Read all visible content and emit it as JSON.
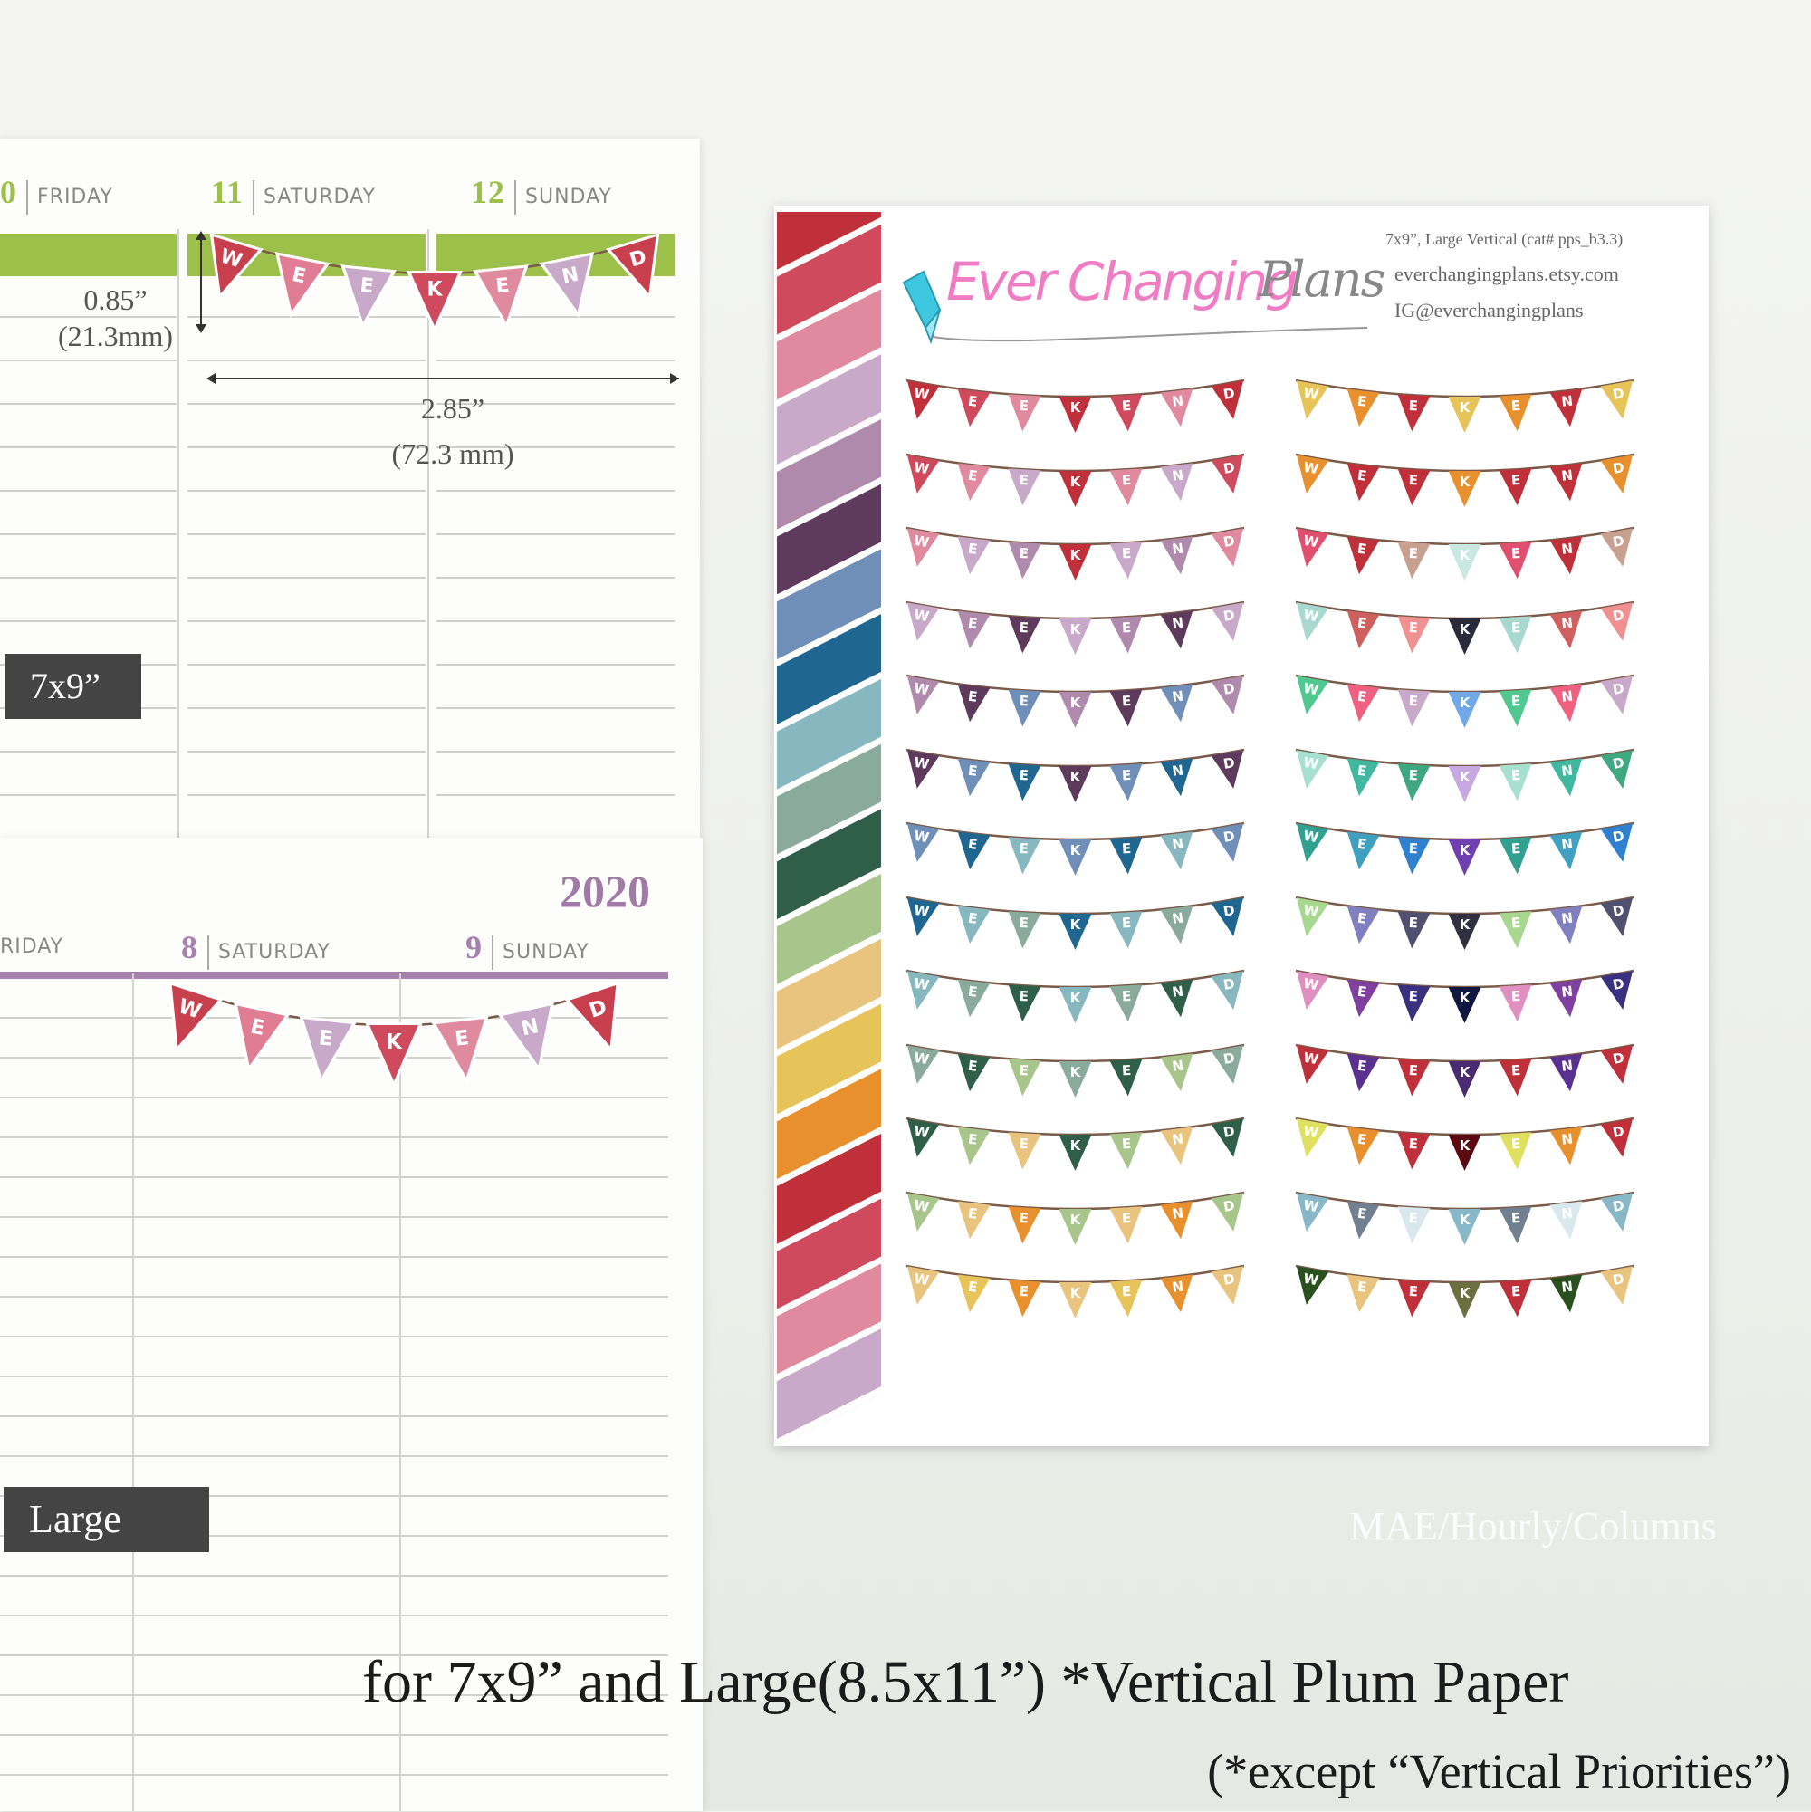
{
  "planner_7x9": {
    "days": [
      {
        "num": "0",
        "name": "FRIDAY"
      },
      {
        "num": "11",
        "name": "SATURDAY"
      },
      {
        "num": "12",
        "name": "SUNDAY"
      }
    ],
    "accent": "#9cc04a",
    "height_in": "0.85”",
    "height_mm": "(21.3mm)",
    "width_in": "2.85”",
    "width_mm": "(72.3 mm)",
    "label": "7x9”"
  },
  "planner_large": {
    "year": "2020",
    "days": [
      {
        "num": "",
        "name": "RIDAY"
      },
      {
        "num": "8",
        "name": "SATURDAY"
      },
      {
        "num": "9",
        "name": "SUNDAY"
      }
    ],
    "accent": "#a880b0",
    "label": "Large"
  },
  "sheet": {
    "logo": {
      "text1": "Ever Changing",
      "text2": "Plans"
    },
    "info": [
      "7x9”, Large Vertical (cat# pps_b3.3)",
      "everchangingplans.etsy.com",
      "IG@everchangingplans"
    ],
    "letters": [
      "W",
      "E",
      "E",
      "K",
      "E",
      "N",
      "D"
    ],
    "stripes": [
      "#c0303a",
      "#d04a5e",
      "#e08aa0",
      "#c9a9c9",
      "#b08aac",
      "#5e3a5c",
      "#6f8fb8",
      "#1f6690",
      "#88b8bf",
      "#8aab9c",
      "#2f5f48",
      "#a8c68c",
      "#e8c47e",
      "#e6c45a",
      "#e8902e",
      "#c0303a",
      "#d04a5e",
      "#e08aa0",
      "#c9a9c9"
    ],
    "left_rows": [
      [
        "#c0303a",
        "#d04a5e",
        "#e08aa0",
        "#c0303a",
        "#d04a5e",
        "#e08aa0",
        "#c0303a"
      ],
      [
        "#d04a5e",
        "#e08aa0",
        "#c9a9c9",
        "#c0303a",
        "#e08aa0",
        "#c9a9c9",
        "#d04a5e"
      ],
      [
        "#e08aa0",
        "#c9a9c9",
        "#b08aac",
        "#c0303a",
        "#c9a9c9",
        "#b08aac",
        "#e08aa0"
      ],
      [
        "#c9a9c9",
        "#b08aac",
        "#5e3a5c",
        "#c9a9c9",
        "#b08aac",
        "#5e3a5c",
        "#c9a9c9"
      ],
      [
        "#b08aac",
        "#5e3a5c",
        "#6f8fb8",
        "#b08aac",
        "#5e3a5c",
        "#6f8fb8",
        "#b08aac"
      ],
      [
        "#5e3a5c",
        "#6f8fb8",
        "#1f6690",
        "#5e3a5c",
        "#6f8fb8",
        "#1f6690",
        "#5e3a5c"
      ],
      [
        "#6f8fb8",
        "#1f6690",
        "#88b8bf",
        "#6f8fb8",
        "#1f6690",
        "#88b8bf",
        "#6f8fb8"
      ],
      [
        "#1f6690",
        "#88b8bf",
        "#8aab9c",
        "#1f6690",
        "#88b8bf",
        "#8aab9c",
        "#1f6690"
      ],
      [
        "#88b8bf",
        "#8aab9c",
        "#2f5f48",
        "#88b8bf",
        "#8aab9c",
        "#2f5f48",
        "#88b8bf"
      ],
      [
        "#8aab9c",
        "#2f5f48",
        "#a8c68c",
        "#8aab9c",
        "#2f5f48",
        "#a8c68c",
        "#8aab9c"
      ],
      [
        "#2f5f48",
        "#a8c68c",
        "#e8c47e",
        "#2f5f48",
        "#a8c68c",
        "#e8c47e",
        "#2f5f48"
      ],
      [
        "#a8c68c",
        "#e8c47e",
        "#e8902e",
        "#a8c68c",
        "#e8c47e",
        "#e8902e",
        "#a8c68c"
      ],
      [
        "#e8c47e",
        "#e6c45a",
        "#e8902e",
        "#e8c47e",
        "#e6c45a",
        "#e8902e",
        "#e8c47e"
      ]
    ],
    "right_rows": [
      [
        "#e6c45a",
        "#e8902e",
        "#c0303a",
        "#e6c45a",
        "#e8902e",
        "#c0303a",
        "#e6c45a"
      ],
      [
        "#e8902e",
        "#c0303a",
        "#c0303a",
        "#e8902e",
        "#c0303a",
        "#c0303a",
        "#e8902e"
      ],
      [
        "#e0506e",
        "#c0303a",
        "#c8a090",
        "#c8e8e0",
        "#e0506e",
        "#c0303a",
        "#c8a090"
      ],
      [
        "#a8d8d0",
        "#d06060",
        "#f09090",
        "#2a2a3a",
        "#a8d8d0",
        "#d06060",
        "#f09090"
      ],
      [
        "#50c890",
        "#f06080",
        "#c9a9c9",
        "#70a8e8",
        "#50c890",
        "#f06080",
        "#c9a9c9"
      ],
      [
        "#a8e0d0",
        "#40b8a0",
        "#40a880",
        "#c8a8e0",
        "#a8e0d0",
        "#40b8a0",
        "#40a880"
      ],
      [
        "#30a090",
        "#40a0c0",
        "#3080d0",
        "#7040b0",
        "#30a090",
        "#40a0c0",
        "#3080d0"
      ],
      [
        "#a8d890",
        "#8080c0",
        "#505070",
        "#303040",
        "#a8d890",
        "#8080c0",
        "#505070"
      ],
      [
        "#e090c0",
        "#8040a0",
        "#3a3080",
        "#101840",
        "#e090c0",
        "#8040a0",
        "#3a3080"
      ],
      [
        "#c0303a",
        "#5a3090",
        "#c0303a",
        "#4a2a70",
        "#c0303a",
        "#5a3090",
        "#c0303a"
      ],
      [
        "#e0e060",
        "#e8902e",
        "#c0303a",
        "#5a0a10",
        "#e0e060",
        "#e8902e",
        "#c0303a"
      ],
      [
        "#88b8c8",
        "#708090",
        "#d8e8ec",
        "#88b8c8",
        "#708090",
        "#d8e8ec",
        "#88b8c8"
      ],
      [
        "#2a5020",
        "#e8c47e",
        "#c0303a",
        "#6a7040",
        "#c0303a",
        "#2a5020",
        "#e8c47e"
      ]
    ]
  },
  "watermark": "MAE/Hourly/Columns",
  "caption": {
    "line1": "for 7x9” and Large(8.5x11”) *Vertical Plum Paper",
    "line2": "(*except “Vertical Priorities”)"
  },
  "sample_colors": [
    "#c8404e",
    "#e07c94",
    "#c9a9c9",
    "#d04a5e",
    "#e08aa0",
    "#c9a9c9",
    "#c8404e"
  ]
}
